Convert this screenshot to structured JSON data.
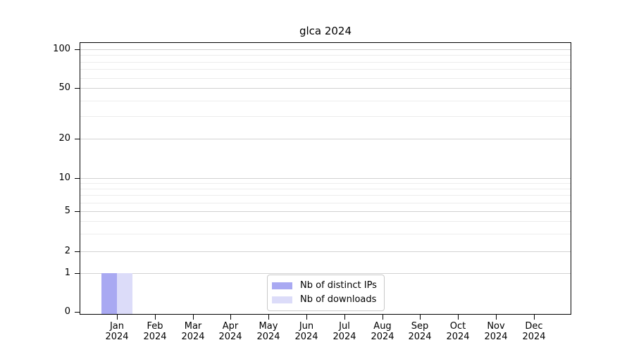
{
  "chart_data": {
    "type": "bar",
    "title": "glca 2024",
    "categories": [
      "Jan",
      "Feb",
      "Mar",
      "Apr",
      "May",
      "Jun",
      "Jul",
      "Aug",
      "Sep",
      "Oct",
      "Nov",
      "Dec"
    ],
    "x_year": "2024",
    "series": [
      {
        "name": "Nb of distinct IPs",
        "color": "#a9a9f2",
        "values": [
          1,
          0,
          0,
          0,
          0,
          0,
          0,
          0,
          0,
          0,
          0,
          0
        ]
      },
      {
        "name": "Nb of downloads",
        "color": "#dcdcf9",
        "values": [
          1,
          0,
          0,
          0,
          0,
          0,
          0,
          0,
          0,
          0,
          0,
          0
        ]
      }
    ],
    "yticks": [
      0,
      1,
      2,
      5,
      10,
      20,
      50,
      100
    ],
    "minor_gridlines": [
      3,
      4,
      6,
      7,
      8,
      9,
      30,
      40,
      60,
      70,
      80,
      90
    ],
    "scale": "log-like (1-2-5 tick sequence, 0 baseline)",
    "ylim": [
      0,
      120
    ],
    "grid": true,
    "xlabel": "",
    "ylabel": "",
    "legend_position": "bottom-center inside plot"
  },
  "colors": {
    "major_grid": "#d2d2d2",
    "minor_grid": "#ececec",
    "axis": "#000000",
    "background": "#ffffff"
  }
}
